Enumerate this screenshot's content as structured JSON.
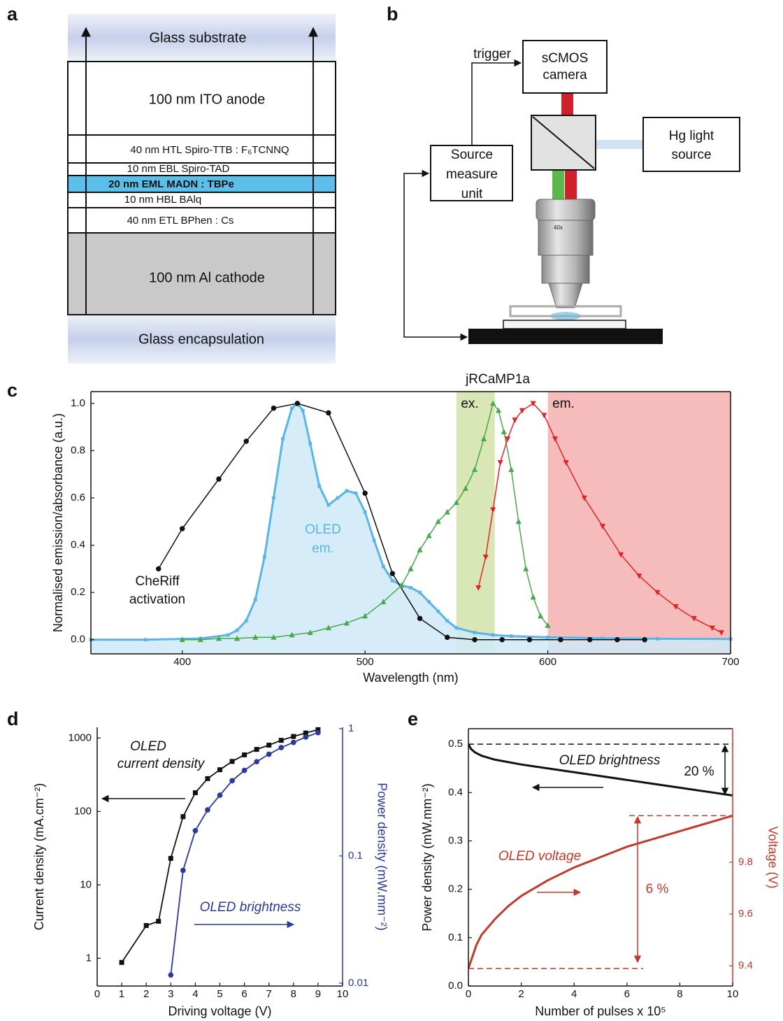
{
  "panel_labels": [
    "a",
    "b",
    "c",
    "d",
    "e"
  ],
  "stack": {
    "top": "Glass substrate",
    "layers": [
      "100 nm ITO anode",
      "40 nm HTL Spiro-TTB : F₆TCNNQ",
      "10 nm EBL Spiro-TAD",
      "20 nm EML MADN : TBPe",
      "10 nm HBL BAlq",
      "40 nm ETL BPhen : Cs",
      "100 nm Al cathode"
    ],
    "bottom": "Glass encapsulation"
  },
  "setup": {
    "trigger": "trigger",
    "camera": [
      "sCMOS",
      "camera"
    ],
    "light_source": [
      "Hg light",
      "source"
    ],
    "smu": [
      "Source",
      "measure",
      "unit"
    ],
    "objective": "40x"
  },
  "chart_data": [
    {
      "type": "line",
      "xlabel": "Wavelength (nm)",
      "ylabel": "Normalised emission/absorbance (a.u.)",
      "xlim": [
        350,
        700
      ],
      "xticks": [
        400,
        500,
        600,
        700
      ],
      "ylim": [
        -0.06,
        1.05
      ],
      "yticks": [
        {
          "value": 0,
          "label": "0.0"
        },
        0.2,
        0.4,
        0.6,
        0.8,
        {
          "value": 1,
          "label": "1.0"
        }
      ],
      "bands": [
        {
          "xlim": [
            550,
            571
          ],
          "color": "#d9e6b5"
        },
        {
          "xlim": [
            600,
            700
          ],
          "color": "#f6bcbc"
        }
      ],
      "annotations": [
        "jRCaMP1a",
        "ex.",
        "em.",
        "OLED",
        "em.",
        "CheRiff",
        "activation"
      ],
      "series": [
        {
          "color": "#5ab4e6",
          "fill": "#cfeaf8",
          "marker": "square",
          "x": [
            350,
            380,
            410,
            425,
            430,
            435,
            440,
            445,
            450,
            455,
            460,
            463,
            466,
            470,
            475,
            480,
            485,
            490,
            495,
            500,
            505,
            510,
            515,
            520,
            525,
            530,
            535,
            540,
            545,
            550,
            560,
            570,
            580,
            600,
            630,
            660,
            700
          ],
          "values": [
            0,
            0,
            0.005,
            0.02,
            0.04,
            0.08,
            0.17,
            0.35,
            0.6,
            0.85,
            0.98,
            1.0,
            0.97,
            0.83,
            0.65,
            0.57,
            0.6,
            0.63,
            0.62,
            0.54,
            0.42,
            0.31,
            0.25,
            0.23,
            0.22,
            0.2,
            0.16,
            0.12,
            0.08,
            0.05,
            0.03,
            0.02,
            0.015,
            0.01,
            0.006,
            0.004,
            0.003
          ]
        },
        {
          "color": "#111111",
          "marker": "circle",
          "x": [
            387,
            400,
            420,
            435,
            450,
            463,
            480,
            500,
            515,
            530,
            545,
            560,
            575,
            590,
            607,
            623,
            638,
            653
          ],
          "values": [
            0.3,
            0.47,
            0.68,
            0.84,
            0.98,
            1.0,
            0.96,
            0.62,
            0.28,
            0.09,
            0.01,
            0,
            0,
            0,
            0,
            0,
            0,
            0
          ]
        },
        {
          "color": "#4aa84a",
          "marker": "triangle-up",
          "x": [
            400,
            410,
            420,
            430,
            440,
            450,
            460,
            470,
            480,
            490,
            500,
            510,
            520,
            525,
            530,
            535,
            540,
            545,
            550,
            555,
            560,
            565,
            570,
            573,
            576,
            580,
            584,
            588,
            592,
            596,
            600
          ],
          "values": [
            0,
            0,
            0.005,
            0.005,
            0.01,
            0.01,
            0.02,
            0.03,
            0.05,
            0.07,
            0.1,
            0.16,
            0.23,
            0.3,
            0.38,
            0.44,
            0.5,
            0.54,
            0.58,
            0.64,
            0.72,
            0.85,
            1.0,
            0.97,
            0.88,
            0.72,
            0.5,
            0.3,
            0.18,
            0.1,
            0.06
          ]
        },
        {
          "color": "#e0242a",
          "marker": "triangle-down",
          "x": [
            562,
            566,
            570,
            574,
            578,
            582,
            586,
            592,
            598,
            604,
            610,
            620,
            630,
            640,
            650,
            660,
            670,
            680,
            690,
            695
          ],
          "values": [
            0.22,
            0.35,
            0.55,
            0.75,
            0.85,
            0.93,
            0.97,
            1.0,
            0.95,
            0.85,
            0.75,
            0.6,
            0.48,
            0.36,
            0.27,
            0.2,
            0.14,
            0.09,
            0.05,
            0.03
          ]
        }
      ]
    },
    {
      "type": "line",
      "xlabel": "Driving voltage (V)",
      "ylabel": "Current density (mA.cm⁻²)",
      "y2label": "Power density (mW.mm⁻²)",
      "xlim": [
        0,
        10
      ],
      "xticks": [
        0,
        1,
        2,
        3,
        4,
        5,
        6,
        7,
        8,
        9,
        10
      ],
      "ylim": [
        0.42,
        1400
      ],
      "ylog": true,
      "yticks": [
        1,
        10,
        100,
        1000
      ],
      "y2lim": [
        0.0095,
        1.025
      ],
      "y2log": true,
      "y2ticks": [
        0.01,
        0.1,
        1
      ],
      "annotations": [
        "OLED",
        "current density",
        "OLED brightness"
      ],
      "series": [
        {
          "color": "#111111",
          "marker": "square",
          "x": [
            1,
            2,
            2.5,
            3,
            3.5,
            4,
            4.5,
            5,
            5.5,
            6,
            6.5,
            7,
            7.5,
            8,
            8.5,
            9
          ],
          "values": [
            0.88,
            2.8,
            3.2,
            23,
            85,
            180,
            280,
            370,
            480,
            590,
            700,
            800,
            930,
            1050,
            1170,
            1300
          ]
        },
        {
          "color": "#2b3a9a",
          "marker": "circle",
          "axis": "y2",
          "x": [
            3,
            3.5,
            4,
            4.5,
            5,
            5.5,
            6,
            6.5,
            7,
            7.5,
            8,
            8.5,
            9
          ],
          "values": [
            0.0116,
            0.077,
            0.158,
            0.23,
            0.3,
            0.39,
            0.47,
            0.55,
            0.63,
            0.71,
            0.78,
            0.86,
            0.93
          ]
        }
      ]
    },
    {
      "type": "line",
      "xlabel": "Number of pulses x 10⁵",
      "ylabel": "Power density (mW.mm⁻²)",
      "y2label": "Voltage (V)",
      "xlim": [
        0,
        10
      ],
      "xticks": [
        0,
        2,
        4,
        6,
        8,
        10
      ],
      "ylim": [
        0,
        0.532
      ],
      "yticks": [
        {
          "value": 0,
          "label": "0.0"
        },
        0.1,
        0.2,
        0.3,
        0.4,
        0.5
      ],
      "y2lim": [
        9.322,
        10.316
      ],
      "y2ticks": [
        9.4,
        9.6,
        9.8
      ],
      "guide_lines": true,
      "annotations": [
        "OLED brightness",
        "20 %",
        "OLED voltage",
        "6 %"
      ],
      "series": [
        {
          "color": "#111111",
          "x": [
            0,
            0.1,
            0.25,
            0.5,
            1,
            2,
            3,
            4,
            5,
            6,
            7,
            8,
            9,
            10
          ],
          "values": [
            0.5,
            0.49,
            0.483,
            0.476,
            0.468,
            0.458,
            0.45,
            0.442,
            0.434,
            0.426,
            0.418,
            0.41,
            0.402,
            0.394
          ]
        },
        {
          "color": "#c0392b",
          "axis": "y2",
          "x": [
            0,
            0.1,
            0.3,
            0.5,
            1,
            1.5,
            2,
            3,
            4,
            5,
            6,
            7,
            8,
            9,
            10
          ],
          "values": [
            9.39,
            9.42,
            9.48,
            9.52,
            9.58,
            9.63,
            9.67,
            9.73,
            9.78,
            9.82,
            9.86,
            9.89,
            9.92,
            9.95,
            9.98
          ]
        }
      ]
    }
  ]
}
